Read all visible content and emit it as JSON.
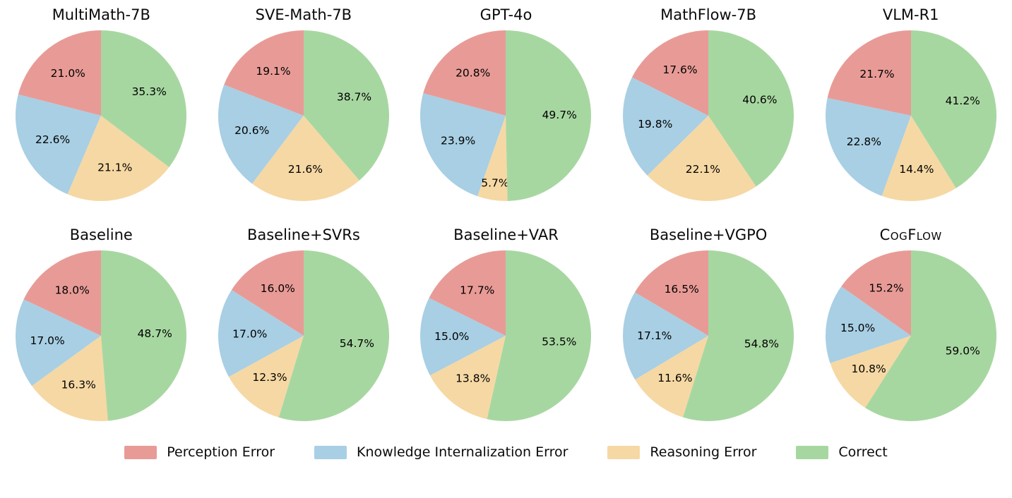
{
  "chart_data": {
    "type": "pie",
    "categories": [
      "Perception Error",
      "Knowledge Internalization Error",
      "Reasoning Error",
      "Correct"
    ],
    "colors": [
      "#E89B96",
      "#A8CFE4",
      "#F6D8A4",
      "#A7D7A1"
    ],
    "start_angle": 90,
    "direction": "counterclockwise",
    "label_format": "percent_one_decimal",
    "grid": "off",
    "charts": [
      {
        "title": "MultiMath-7B",
        "values": [
          21.0,
          22.6,
          21.1,
          35.3
        ]
      },
      {
        "title": "SVE-Math-7B",
        "values": [
          19.1,
          20.6,
          21.6,
          38.7
        ]
      },
      {
        "title": "GPT-4o",
        "values": [
          20.8,
          23.9,
          5.7,
          49.7
        ]
      },
      {
        "title": "MathFlow-7B",
        "values": [
          17.6,
          19.8,
          22.1,
          40.6
        ]
      },
      {
        "title": "VLM-R1",
        "values": [
          21.7,
          22.8,
          14.4,
          41.2
        ]
      },
      {
        "title": "Baseline",
        "values": [
          18.0,
          17.0,
          16.3,
          48.7
        ]
      },
      {
        "title": "Baseline+SVRs",
        "values": [
          16.0,
          17.0,
          12.3,
          54.7
        ]
      },
      {
        "title": "Baseline+VAR",
        "values": [
          17.7,
          15.0,
          13.8,
          53.5
        ]
      },
      {
        "title": "Baseline+VGPO",
        "values": [
          16.5,
          17.1,
          11.6,
          54.8
        ]
      },
      {
        "title": "CogFlow",
        "values": [
          15.2,
          15.0,
          10.8,
          59.0
        ],
        "title_smallcaps": true
      }
    ],
    "legend": {
      "position": "bottom",
      "items": [
        "Perception Error",
        "Knowledge Internalization Error",
        "Reasoning Error",
        "Correct"
      ]
    }
  }
}
